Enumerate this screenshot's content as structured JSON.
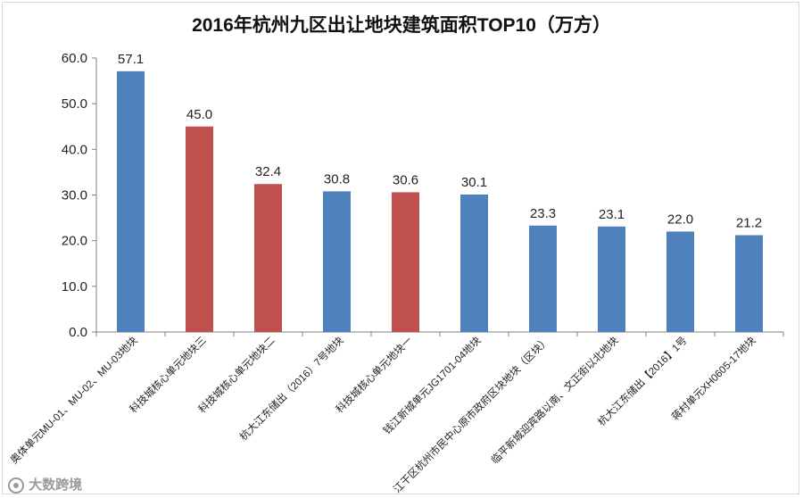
{
  "chart_data": {
    "type": "bar",
    "title": "2016年杭州九区出让地块建筑面积TOP10（万方）",
    "categories": [
      "奥体单元MU-01、MU-02、MU-03地块",
      "科技城核心单元地块三",
      "科技城核心单元地块二",
      "杭大江东储出（2016）7号地块",
      "科技城核心单元地块一",
      "钱江新城单元JG1701-04地块",
      "江干区杭州市民中心原市政府区块地块（区块）",
      "临平新城迎宾路以南、文正街以北地块",
      "杭大江东储出【2016】1号",
      "蒋村单元XH0605-17地块"
    ],
    "values": [
      57.1,
      45.0,
      32.4,
      30.8,
      30.6,
      30.1,
      23.3,
      23.1,
      22.0,
      21.2
    ],
    "value_labels": [
      "57.1",
      "45.0",
      "32.4",
      "30.8",
      "30.6",
      "30.1",
      "23.3",
      "23.1",
      "22.0",
      "21.2"
    ],
    "bar_colors": [
      "#4f81bd",
      "#c0504d",
      "#c0504d",
      "#4f81bd",
      "#c0504d",
      "#4f81bd",
      "#4f81bd",
      "#4f81bd",
      "#4f81bd",
      "#4f81bd"
    ],
    "ylim": [
      0,
      60
    ],
    "yticks": [
      "0.0",
      "10.0",
      "20.0",
      "30.0",
      "40.0",
      "50.0",
      "60.0"
    ],
    "xlabel": "",
    "ylabel": "",
    "grid": false
  },
  "brand": {
    "text": "大数跨境",
    "icon": "brand-logo-icon"
  },
  "colors": {
    "axis": "#7f7f7f"
  }
}
